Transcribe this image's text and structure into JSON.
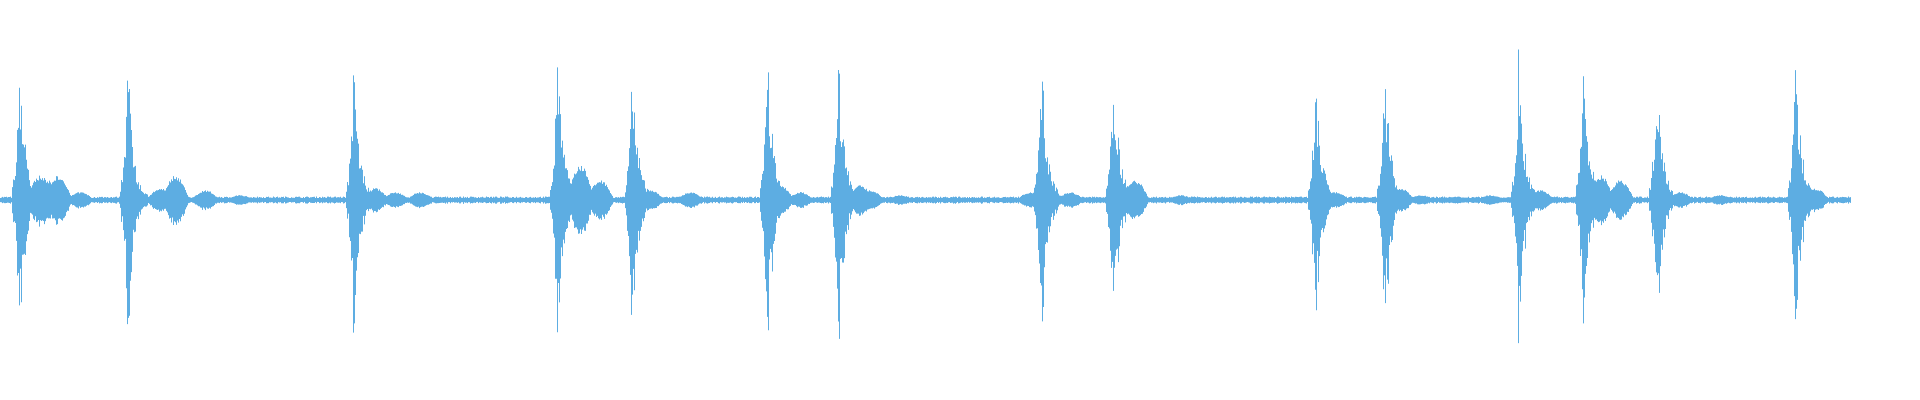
{
  "waveform": {
    "color": "#5dade2",
    "background": "#ffffff",
    "channels": 1
  }
}
